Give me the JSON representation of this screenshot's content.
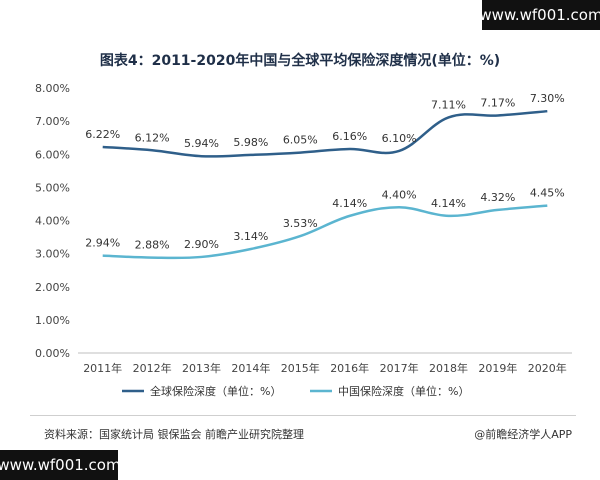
{
  "watermark": {
    "site": "www.wf001.com"
  },
  "chart_data": {
    "type": "line",
    "title": "图表4：2011-2020年中国与全球平均保险深度情况(单位：%)",
    "categories": [
      "2011年",
      "2012年",
      "2013年",
      "2014年",
      "2015年",
      "2016年",
      "2017年",
      "2018年",
      "2019年",
      "2020年"
    ],
    "series": [
      {
        "name": "全球保险深度（单位：%）",
        "color": "#2f5f8a",
        "values": [
          6.22,
          6.12,
          5.94,
          5.98,
          6.05,
          6.16,
          6.1,
          7.11,
          7.17,
          7.3
        ],
        "labels": [
          "6.22%",
          "6.12%",
          "5.94%",
          "5.98%",
          "6.05%",
          "6.16%",
          "6.10%",
          "7.11%",
          "7.17%",
          "7.30%"
        ]
      },
      {
        "name": "中国保险深度（单位：%）",
        "color": "#5bb5d0",
        "values": [
          2.94,
          2.88,
          2.9,
          3.14,
          3.53,
          4.14,
          4.4,
          4.14,
          4.32,
          4.45
        ],
        "labels": [
          "2.94%",
          "2.88%",
          "2.90%",
          "3.14%",
          "3.53%",
          "4.14%",
          "4.40%",
          "4.14%",
          "4.32%",
          "4.45%"
        ]
      }
    ],
    "ylim": [
      0,
      8
    ],
    "yticks": [
      "0.00%",
      "1.00%",
      "2.00%",
      "3.00%",
      "4.00%",
      "5.00%",
      "6.00%",
      "7.00%",
      "8.00%"
    ],
    "grid": false,
    "legend": "bottom"
  },
  "footer": {
    "source": "资料来源：国家统计局 银保监会 前瞻产业研究院整理",
    "brand": "@前瞻经济学人APP"
  }
}
